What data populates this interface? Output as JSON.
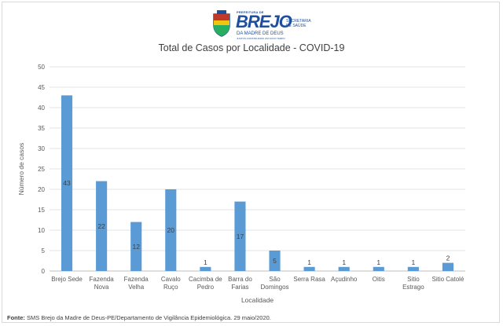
{
  "header": {
    "logo_prefix": "PREFEITURA DE",
    "logo_main": "BREJO",
    "logo_sub": "DA MADRE DE DEUS",
    "logo_tagline": "JUNTOS CONSTRUINDO UM NOVO TEMPO",
    "secretariat": "SECRETARIA DE SAÚDE"
  },
  "footnote": {
    "label": "Fonte:",
    "text": " SMS Brejo da Madre de Deus-PE/Departamento de Vigilância Epidemiológica. 29 maio/2020."
  },
  "chart_data": {
    "type": "bar",
    "title": "Total de Casos por Localidade - COVID-19",
    "xlabel": "Localidade",
    "ylabel": "Número de casos",
    "ylim": [
      0,
      50
    ],
    "yticks": [
      0,
      5,
      10,
      15,
      20,
      25,
      30,
      35,
      40,
      45,
      50
    ],
    "grid": true,
    "categories": [
      [
        "Brejo Sede"
      ],
      [
        "Fazenda",
        "Nova"
      ],
      [
        "Fazenda",
        "Velha"
      ],
      [
        "Cavalo",
        "Ruço"
      ],
      [
        "Cacimba de",
        "Pedro"
      ],
      [
        "Barra do",
        "Farias"
      ],
      [
        "São",
        "Domingos"
      ],
      [
        "Serra Rasa"
      ],
      [
        "Açudinho"
      ],
      [
        "Oitis"
      ],
      [
        "Sitio",
        "Estrago"
      ],
      [
        "Sitio Catolé"
      ]
    ],
    "values": [
      43,
      22,
      12,
      20,
      1,
      17,
      5,
      1,
      1,
      1,
      1,
      2
    ],
    "bar_color": "#5b9bd5"
  }
}
